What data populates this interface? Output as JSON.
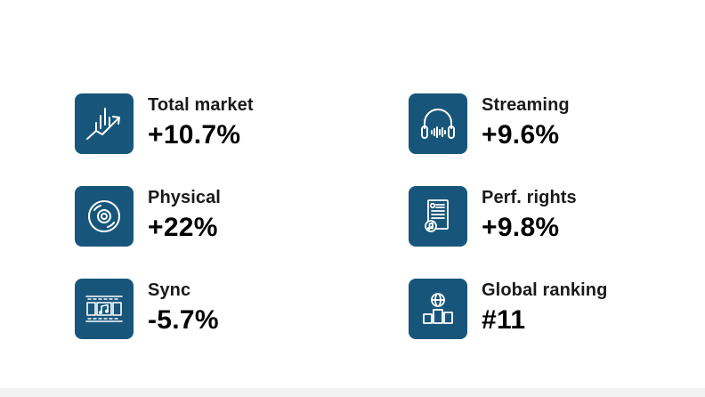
{
  "stats": [
    {
      "label": "Total market",
      "value": "+10.7%",
      "icon": "chart-growth-icon"
    },
    {
      "label": "Streaming",
      "value": "+9.6%",
      "icon": "headphones-icon"
    },
    {
      "label": "Physical",
      "value": "+22%",
      "icon": "disc-icon"
    },
    {
      "label": "Perf. rights",
      "value": "+9.8%",
      "icon": "document-music-icon"
    },
    {
      "label": "Sync",
      "value": "-5.7%",
      "icon": "film-music-icon"
    },
    {
      "label": "Global ranking",
      "value": "#11",
      "icon": "globe-podium-icon"
    }
  ],
  "colors": {
    "tile": "#17567a",
    "icon": "#ffffff",
    "text": "#1a1a1a"
  }
}
